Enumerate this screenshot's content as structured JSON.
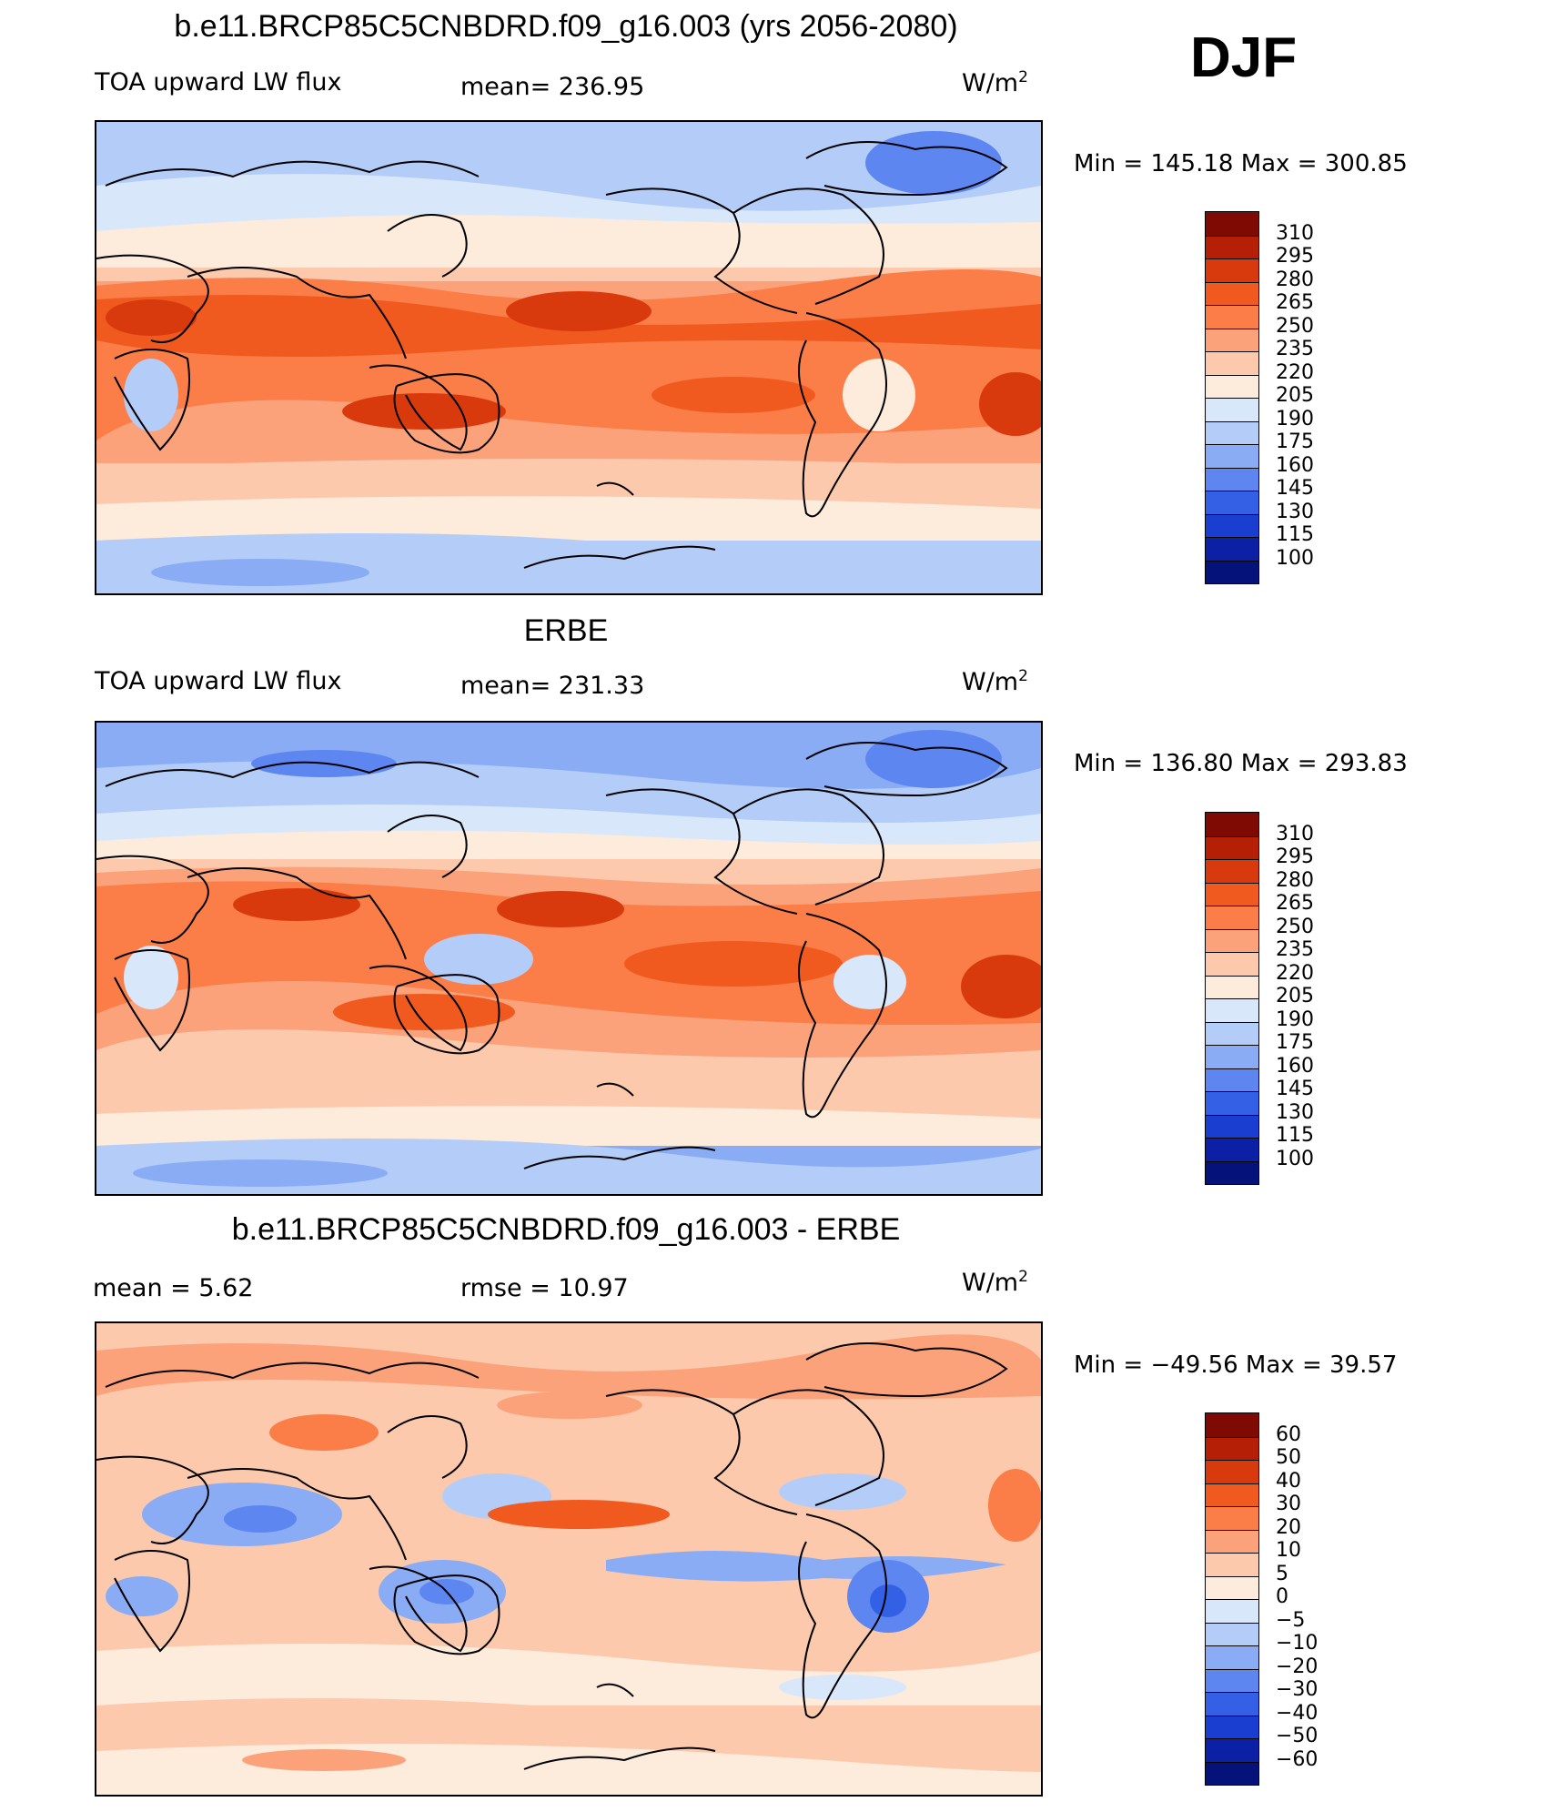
{
  "season": "DJF",
  "panels": [
    {
      "title": "b.e11.BRCP85C5CNBDRD.f09_g16.003 (yrs 2056-2080)",
      "left_label": "TOA upward LW flux",
      "center_label": "mean=  236.95",
      "units": "W/m",
      "units_sup": "2",
      "minmax": "Min  =  145.18  Max  =  300.85",
      "colorbar_labels": [
        "310",
        "295",
        "280",
        "265",
        "250",
        "235",
        "220",
        "205",
        "190",
        "175",
        "160",
        "145",
        "130",
        "115",
        "100"
      ]
    },
    {
      "title": "ERBE",
      "left_label": "TOA upward LW flux",
      "center_label": "mean=  231.33",
      "units": "W/m",
      "units_sup": "2",
      "minmax": "Min  =  136.80  Max  =  293.83",
      "colorbar_labels": [
        "310",
        "295",
        "280",
        "265",
        "250",
        "235",
        "220",
        "205",
        "190",
        "175",
        "160",
        "145",
        "130",
        "115",
        "100"
      ]
    },
    {
      "title": "b.e11.BRCP85C5CNBDRD.f09_g16.003 - ERBE",
      "left_label": "mean =      5.62",
      "center_label": "rmse =     10.97",
      "units": "W/m",
      "units_sup": "2",
      "minmax": "Min  =  −49.56  Max  =    39.57",
      "colorbar_labels": [
        "60",
        "50",
        "40",
        "30",
        "20",
        "10",
        "5",
        "0",
        "−5",
        "−10",
        "−20",
        "−30",
        "−40",
        "−50",
        "−60"
      ]
    }
  ],
  "colorbar_colors": [
    "#7f0a04",
    "#b51f06",
    "#d93a0d",
    "#f15a1f",
    "#fb7d47",
    "#fca27b",
    "#fdc9ac",
    "#fdebdc",
    "#d9e7fb",
    "#b4cdf8",
    "#8aacf5",
    "#5d86f1",
    "#3460e6",
    "#1a3fd0",
    "#0c20a6",
    "#04127a"
  ],
  "map_colors": {
    "cold_strong": "#8aacf5",
    "cold": "#b4cdf8",
    "cool": "#d9e7fb",
    "neutral": "#fdebdc",
    "warm": "#fdc9ac",
    "warmer": "#fca27b",
    "hot": "#fb7d47",
    "hotter": "#f15a1f",
    "hottest": "#d93a0d",
    "blue_anom": "#5d86f1"
  }
}
